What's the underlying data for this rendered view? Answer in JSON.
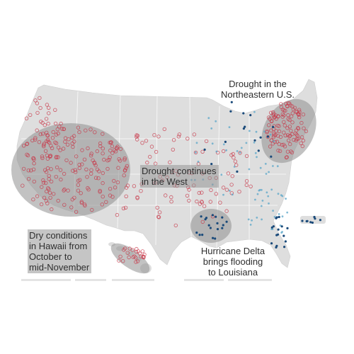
{
  "map": {
    "type": "point map",
    "region": "United States",
    "colors": {
      "land": "#dedede",
      "state_border": "#ffffff",
      "highlight_ellipse": "#8f8f8f",
      "below_normal_marker": "#c8384a",
      "above_normal_marker": "#5aa6c8",
      "above_normal_dark_marker": "#1a4a7a",
      "label_box": "#969696",
      "label_text": "#2f2f2f"
    }
  },
  "annotations": {
    "northeast": {
      "lines": [
        "Drought in the",
        "Northeastern U.S."
      ]
    },
    "west": {
      "lines": [
        "Drought continues",
        "in the West"
      ]
    },
    "hawaii": {
      "lines": [
        "Dry conditions",
        "in Hawaii from",
        "October to",
        "mid-November"
      ]
    },
    "delta": {
      "lines": [
        "Hurricane Delta",
        "brings flooding",
        "to Louisiana"
      ]
    }
  }
}
